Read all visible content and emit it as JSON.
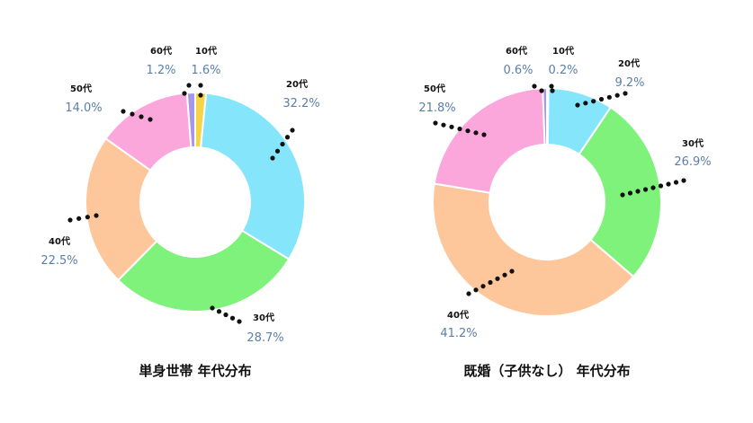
{
  "chart_data": [
    {
      "type": "pie",
      "title": "単身世帯 年代分布",
      "categories": [
        "10代",
        "20代",
        "30代",
        "40代",
        "50代",
        "60代"
      ],
      "values": [
        1.6,
        32.2,
        28.7,
        22.5,
        14.0,
        1.2
      ],
      "value_labels": [
        "1.6%",
        "32.2%",
        "28.7%",
        "22.5%",
        "14.0%",
        "1.2%"
      ],
      "colors": [
        "#f5d547",
        "#85e5fb",
        "#7ef27a",
        "#fdc79b",
        "#fba7dc",
        "#a598e8"
      ],
      "donut": true,
      "legend": "none"
    },
    {
      "type": "pie",
      "title": "既婚（子供なし） 年代分布",
      "categories": [
        "10代",
        "20代",
        "30代",
        "40代",
        "50代",
        "60代"
      ],
      "values": [
        0.2,
        9.2,
        26.9,
        41.2,
        21.8,
        0.6
      ],
      "value_labels": [
        "0.2%",
        "9.2%",
        "26.9%",
        "41.2%",
        "21.8%",
        "0.6%"
      ],
      "colors": [
        "#f5d547",
        "#85e5fb",
        "#7ef27a",
        "#fdc79b",
        "#fba7dc",
        "#a598e8"
      ],
      "donut": true,
      "legend": "none"
    }
  ]
}
